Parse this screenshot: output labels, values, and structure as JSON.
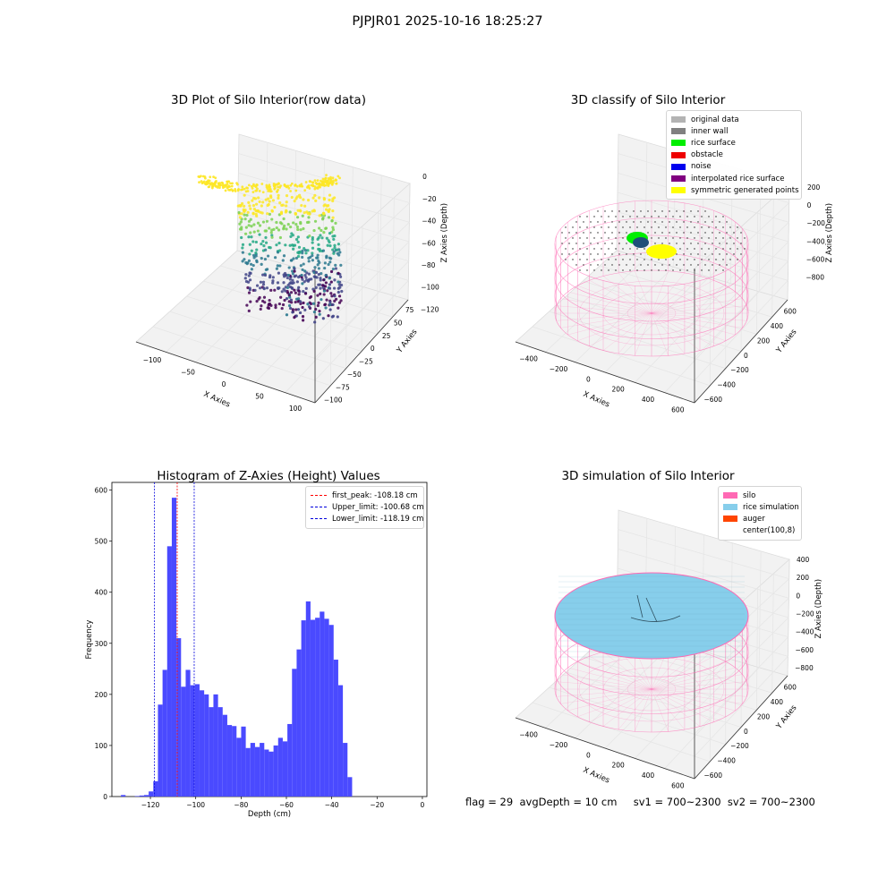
{
  "figure": {
    "suptitle": "PJPJR01 2025-10-16 18:25:27",
    "footer": "flag = 29  avgDepth = 10 cm     sv1 = 700~2300  sv2 = 700~2300"
  },
  "colors": {
    "hist_bar": "#4a4aff",
    "first_peak": "#ff0000",
    "limits": "#0000dd",
    "silo": "#ff69b4",
    "rice_sim": "#87ceeb",
    "auger": "#ff4500",
    "grid": "#e6e6e6"
  },
  "plot1": {
    "title": "3D Plot of Silo Interior(row data)",
    "xlabel": "X Axies",
    "ylabel": "Y Axies",
    "zlabel": "Z Axies (Depth)",
    "xticks": [
      "−100",
      "−50",
      "0",
      "50",
      "100"
    ],
    "yticks": [
      "−100",
      "−75",
      "−50",
      "−25",
      "0",
      "25",
      "50",
      "75"
    ],
    "zticks": [
      "0",
      "−20",
      "−40",
      "−60",
      "−80",
      "−100",
      "−120"
    ]
  },
  "plot2": {
    "title": "3D classify of Silo Interior",
    "xlabel": "X Axies",
    "ylabel": "Y Axies",
    "zlabel": "Z Axies (Depth)",
    "xticks": [
      "−400",
      "−200",
      "0",
      "200",
      "400",
      "600"
    ],
    "yticks": [
      "−600",
      "−400",
      "−200",
      "0",
      "200",
      "400",
      "600"
    ],
    "zticks": [
      "200",
      "0",
      "−200",
      "−400",
      "−600",
      "−800"
    ],
    "zticks_partial": "00",
    "legend": [
      {
        "label": "original data",
        "color": "#b3b3b3"
      },
      {
        "label": "inner wall",
        "color": "#808080"
      },
      {
        "label": "rice surface",
        "color": "#00ee00"
      },
      {
        "label": "obstacle",
        "color": "#ee0000"
      },
      {
        "label": "noise",
        "color": "#0000ee"
      },
      {
        "label": "interpolated rice surface",
        "color": "#800080"
      },
      {
        "label": "symmetric generated points",
        "color": "#ffff00"
      }
    ]
  },
  "plot4": {
    "title": "3D simulation of Silo Interior",
    "xlabel": "X Axies",
    "ylabel": "Y Axies",
    "zlabel": "Z Axies (Depth)",
    "xticks": [
      "−400",
      "−200",
      "0",
      "200",
      "400",
      "600"
    ],
    "yticks": [
      "−600",
      "−400",
      "−200",
      "0",
      "200",
      "400",
      "600"
    ],
    "zticks": [
      "400",
      "200",
      "0",
      "−200",
      "−400",
      "−600",
      "−800"
    ],
    "legend": [
      {
        "label": "silo",
        "color": "#ff69b4"
      },
      {
        "label": "rice simulation",
        "color": "#87ceeb"
      },
      {
        "label": "auger",
        "color": "#ff4500"
      },
      {
        "label": "center(100,8)",
        "color": ""
      }
    ]
  },
  "chart_data": {
    "type": "bar",
    "title": "Histogram of Z-Axies (Height) Values",
    "xlabel": "Depth (cm)",
    "ylabel": "Frequency",
    "xlim": [
      -137,
      2
    ],
    "ylim": [
      0,
      615
    ],
    "xticks": [
      -120,
      -100,
      -80,
      -60,
      -40,
      -20,
      0
    ],
    "xtick_labels": [
      "−120",
      "−100",
      "−80",
      "−60",
      "−40",
      "−20",
      "0"
    ],
    "yticks": [
      0,
      100,
      200,
      300,
      400,
      500,
      600
    ],
    "bin_start": -133,
    "bin_width": 2.04,
    "values": [
      3,
      0,
      0,
      1,
      2,
      3,
      10,
      30,
      180,
      248,
      490,
      585,
      310,
      215,
      248,
      218,
      220,
      208,
      200,
      175,
      200,
      175,
      160,
      140,
      138,
      115,
      137,
      95,
      105,
      97,
      105,
      92,
      88,
      100,
      115,
      108,
      142,
      250,
      288,
      345,
      382,
      346,
      350,
      362,
      348,
      336,
      268,
      218,
      105,
      38
    ],
    "vlines": [
      {
        "label": "first_peak: -108.18 cm",
        "x": -108.18,
        "color": "#ff0000"
      },
      {
        "label": "Upper_limit: -100.68 cm",
        "x": -100.68,
        "color": "#0000dd"
      },
      {
        "label": "Lower_limit: -118.19 cm",
        "x": -118.19,
        "color": "#0000dd"
      }
    ],
    "legend_loc": "upper right",
    "grid": false
  }
}
